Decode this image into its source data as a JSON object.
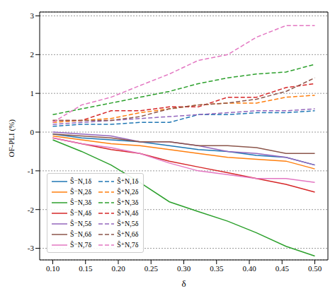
{
  "chart_data": {
    "type": "line",
    "x_label": "δ",
    "y_label": "OF-PLI (%)",
    "x": [
      0.1,
      0.144,
      0.189,
      0.233,
      0.278,
      0.322,
      0.367,
      0.411,
      0.456,
      0.5
    ],
    "xlim": [
      0.08,
      0.52
    ],
    "xticks": [
      {
        "value": 0.1,
        "label": "0.10"
      },
      {
        "value": 0.15,
        "label": "0.15"
      },
      {
        "value": 0.2,
        "label": "0.20"
      },
      {
        "value": 0.25,
        "label": "0.25"
      },
      {
        "value": 0.3,
        "label": "0.30"
      },
      {
        "value": 0.35,
        "label": "0.35"
      },
      {
        "value": 0.4,
        "label": "0.40"
      },
      {
        "value": 0.45,
        "label": "0.45"
      },
      {
        "value": 0.5,
        "label": "0.50"
      }
    ],
    "ylim": [
      -3.3,
      3.1
    ],
    "yticks": [
      -3,
      -2,
      -1,
      0,
      1,
      2,
      3
    ],
    "grid": true,
    "legend": "lower left",
    "series": [
      {
        "name": "Ŝ⁻N,1δ",
        "color": "#1f77b4",
        "line_style": "solid",
        "values": [
          -0.05,
          -0.15,
          -0.2,
          -0.25,
          -0.35,
          -0.45,
          -0.5,
          -0.6,
          -0.65,
          -0.85
        ]
      },
      {
        "name": "Ŝ⁻N,2δ",
        "color": "#ff7f0e",
        "line_style": "solid",
        "values": [
          -0.1,
          -0.2,
          -0.3,
          -0.35,
          -0.45,
          -0.55,
          -0.65,
          -0.7,
          -0.75,
          -0.95
        ]
      },
      {
        "name": "Ŝ⁻N,3δ",
        "color": "#2ca02c",
        "line_style": "solid",
        "values": [
          -0.2,
          -0.5,
          -0.85,
          -1.3,
          -1.8,
          -2.05,
          -2.3,
          -2.6,
          -2.95,
          -3.2
        ]
      },
      {
        "name": "Ŝ⁻N,4δ",
        "color": "#d62728",
        "line_style": "solid",
        "values": [
          -0.15,
          -0.3,
          -0.45,
          -0.55,
          -0.75,
          -0.9,
          -1.05,
          -1.2,
          -1.35,
          -1.55
        ]
      },
      {
        "name": "Ŝ⁻N,5δ",
        "color": "#9467bd",
        "line_style": "solid",
        "values": [
          0,
          -0.05,
          -0.1,
          -0.25,
          -0.25,
          -0.35,
          -0.5,
          -0.55,
          -0.65,
          -0.85
        ]
      },
      {
        "name": "Ŝ⁻N,6δ",
        "color": "#8c564b",
        "line_style": "solid",
        "values": [
          -0.05,
          -0.1,
          -0.15,
          -0.25,
          -0.25,
          -0.35,
          -0.35,
          -0.4,
          -0.55,
          -0.55
        ]
      },
      {
        "name": "Ŝ⁻N,7δ",
        "color": "#e377c2",
        "line_style": "solid",
        "values": [
          -0.15,
          -0.3,
          -0.4,
          -0.55,
          -0.8,
          -1.0,
          -1.1,
          -1.2,
          -1.2,
          -1.3
        ]
      },
      {
        "name": "Ŝ⁺N,1δ",
        "color": "#1f77b4",
        "line_style": "dashed",
        "values": [
          0.15,
          0.2,
          0.2,
          0.25,
          0.25,
          0.45,
          0.45,
          0.5,
          0.5,
          0.55
        ]
      },
      {
        "name": "Ŝ⁺N,2δ",
        "color": "#ff7f0e",
        "line_style": "dashed",
        "values": [
          0.25,
          0.3,
          0.35,
          0.5,
          0.6,
          0.7,
          0.75,
          0.75,
          0.9,
          0.95
        ]
      },
      {
        "name": "Ŝ⁺N,3δ",
        "color": "#2ca02c",
        "line_style": "dashed",
        "values": [
          0.45,
          0.6,
          0.75,
          0.9,
          1.05,
          1.25,
          1.4,
          1.5,
          1.55,
          1.75
        ]
      },
      {
        "name": "Ŝ⁺N,4δ",
        "color": "#d62728",
        "line_style": "dashed",
        "values": [
          0.3,
          0.3,
          0.55,
          0.55,
          0.65,
          0.65,
          0.9,
          0.9,
          1.15,
          1.25
        ]
      },
      {
        "name": "Ŝ⁺N,5δ",
        "color": "#9467bd",
        "line_style": "dashed",
        "values": [
          0.2,
          0.25,
          0.3,
          0.35,
          0.4,
          0.45,
          0.5,
          0.55,
          0.55,
          0.6
        ]
      },
      {
        "name": "Ŝ⁺N,6δ",
        "color": "#8c564b",
        "line_style": "dashed",
        "values": [
          0.3,
          0.3,
          0.3,
          0.4,
          0.6,
          0.7,
          0.75,
          0.85,
          1.05,
          1.4
        ]
      },
      {
        "name": "Ŝ⁺N,7δ",
        "color": "#e377c2",
        "line_style": "dashed",
        "values": [
          0.25,
          0.7,
          0.9,
          1.2,
          1.5,
          1.85,
          2.0,
          2.45,
          2.75,
          2.75
        ]
      }
    ]
  }
}
